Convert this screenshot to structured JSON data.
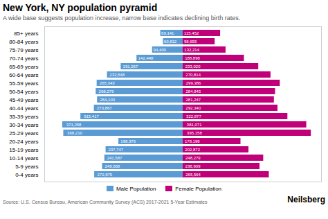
{
  "chart_data": {
    "type": "bar",
    "orientation": "horizontal",
    "title": "New York, NY population pyramid",
    "subtitle": "A wide base suggests population increase, narrow base indicates declining birth rates.",
    "annotations": [
      "Source: U.S. Census Bureau, American Community Survey (ACS) 2017-2021 5-Year Estimates",
      "Neilsberg"
    ],
    "categories": [
      "0-4 years",
      "5-9 years",
      "10-14 years",
      "15-19 years",
      "20-24 years",
      "25-29 years",
      "30-34 years",
      "35-39 years",
      "40-44 years",
      "45-49 years",
      "50-54 years",
      "55-59 years",
      "60-64 years",
      "65-69 years",
      "70-74 years",
      "75-79 years",
      "80-84 years",
      "85+ years"
    ],
    "series": [
      {
        "name": "Male Population",
        "color": "#5B9BD5",
        "values": [
          272875,
          248568,
          241587,
          237747,
          198376,
          368210,
          371258,
          315417,
          273867,
          264103,
          268279,
          265343,
          233548,
          191267,
          142448,
          94400,
          60812,
          69141
        ],
        "value_labels": [
          "272,875",
          "248,568",
          "241,587",
          "237,747",
          "198,376",
          "368,210",
          "371,258",
          "315,417",
          "273,867",
          "264,103",
          "268,279",
          "265,343",
          "233,548",
          "191,267",
          "142,448",
          "94,400",
          "60,812",
          "69,141"
        ]
      },
      {
        "name": "Female Population",
        "color": "#C00078",
        "values": [
          265564,
          236909,
          248279,
          202872,
          178198,
          395158,
          381071,
          322877,
          292340,
          281247,
          284843,
          299386,
          270814,
          233020,
          188898,
          132214,
          98655,
          115452
        ],
        "value_labels": [
          "265,564",
          "236,909",
          "248,279",
          "202,872",
          "178,198",
          "395,158",
          "381,071",
          "322,877",
          "292,340",
          "281,247",
          "284,843",
          "299,386",
          "270,814",
          "233,020",
          "188,898",
          "132,214",
          "98,655",
          "115,452"
        ]
      }
    ],
    "xlim": [
      -426770.64,
      426770.64
    ],
    "xticks": [],
    "tick_labels": "y",
    "data_labels": true,
    "legend": "bottom"
  }
}
